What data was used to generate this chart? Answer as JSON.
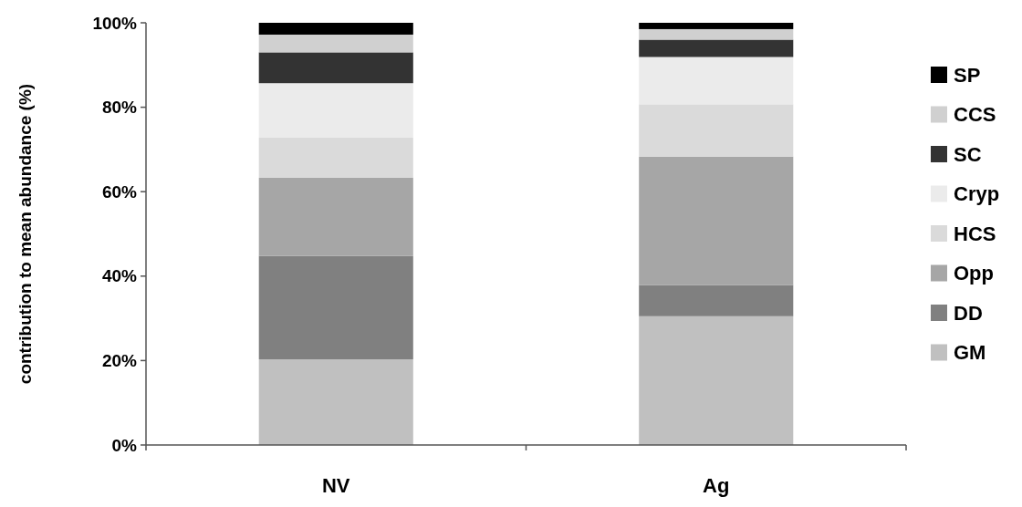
{
  "chart_data": {
    "type": "bar",
    "stacked": true,
    "ylabel": "contribution to mean abundance (%)",
    "categories": [
      "NV",
      "Ag"
    ],
    "ylim": [
      0,
      100
    ],
    "yticks": [
      {
        "value": 0,
        "label": "0%"
      },
      {
        "value": 20,
        "label": "20%"
      },
      {
        "value": 40,
        "label": "40%"
      },
      {
        "value": 60,
        "label": "60%"
      },
      {
        "value": 80,
        "label": "80%"
      },
      {
        "value": 100,
        "label": "100%"
      }
    ],
    "legend": "right",
    "grid": false,
    "series": [
      {
        "name": "GM",
        "color": "#c0c0c0",
        "values": [
          20.3,
          30.5
        ]
      },
      {
        "name": "DD",
        "color": "#808080",
        "values": [
          24.5,
          7.4
        ]
      },
      {
        "name": "Opp",
        "color": "#a6a6a6",
        "values": [
          18.5,
          30.4
        ]
      },
      {
        "name": "HCS",
        "color": "#dadada",
        "values": [
          9.5,
          12.4
        ]
      },
      {
        "name": "Cryp",
        "color": "#ebebeb",
        "values": [
          12.9,
          11.2
        ]
      },
      {
        "name": "SC",
        "color": "#333333",
        "values": [
          7.3,
          4.1
        ]
      },
      {
        "name": "CCS",
        "color": "#d0d0d0",
        "values": [
          4.2,
          2.5
        ]
      },
      {
        "name": "SP",
        "color": "#000000",
        "values": [
          2.8,
          1.5
        ]
      }
    ]
  }
}
